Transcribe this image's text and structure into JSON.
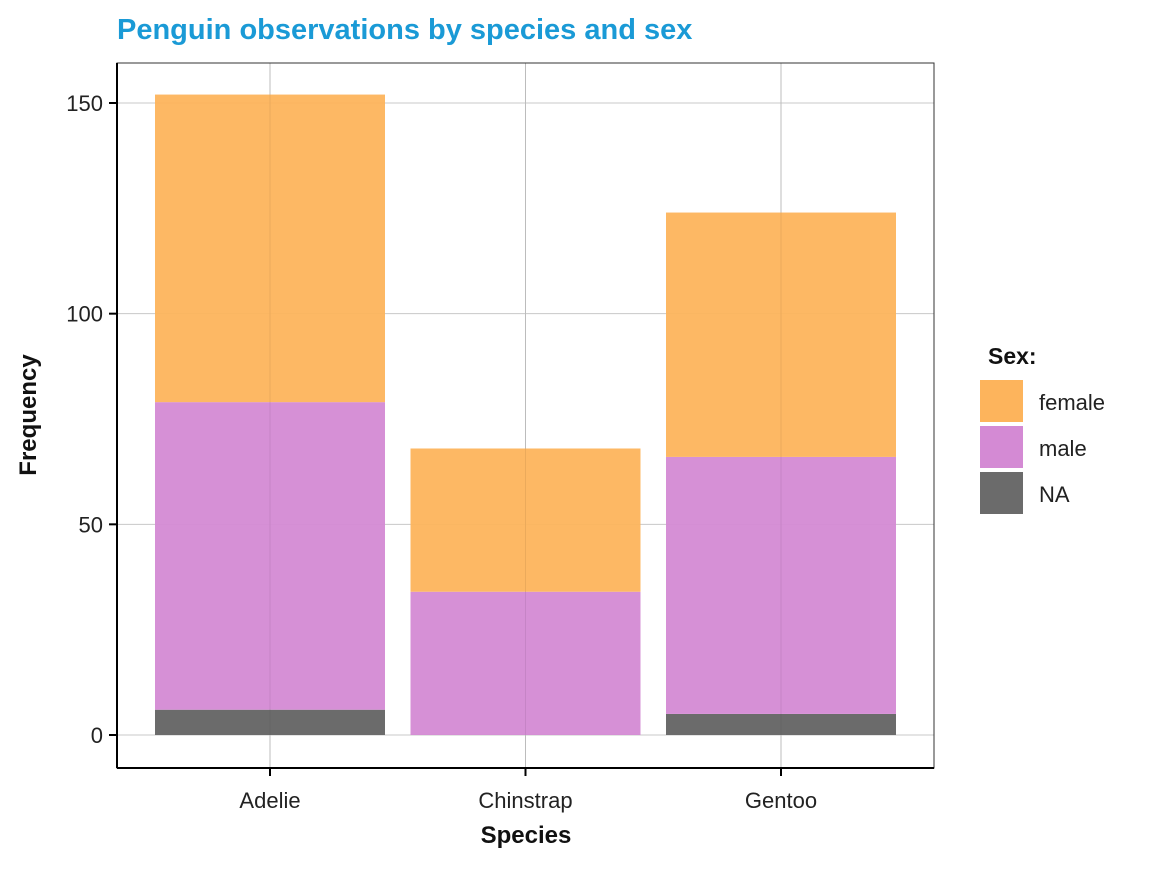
{
  "chart_data": {
    "type": "bar",
    "stacked": true,
    "title": "Penguin observations by species and sex",
    "xlabel": "Species",
    "ylabel": "Frequency",
    "categories": [
      "Adelie",
      "Chinstrap",
      "Gentoo"
    ],
    "series": [
      {
        "name": "NA",
        "values": [
          6,
          0,
          5
        ],
        "color": "#6b6b6b"
      },
      {
        "name": "male",
        "values": [
          73,
          34,
          61
        ],
        "color": "#d48ad4"
      },
      {
        "name": "female",
        "values": [
          73,
          34,
          58
        ],
        "color": "#fdb45c"
      }
    ],
    "ylim": [
      -7.7,
      160
    ],
    "yticks": [
      0,
      50,
      100,
      150
    ],
    "grid": true,
    "legend": {
      "title": "Sex:",
      "entries": [
        "female",
        "male",
        "NA"
      ],
      "placement": "right"
    },
    "title_color": "#1a9ad6"
  }
}
